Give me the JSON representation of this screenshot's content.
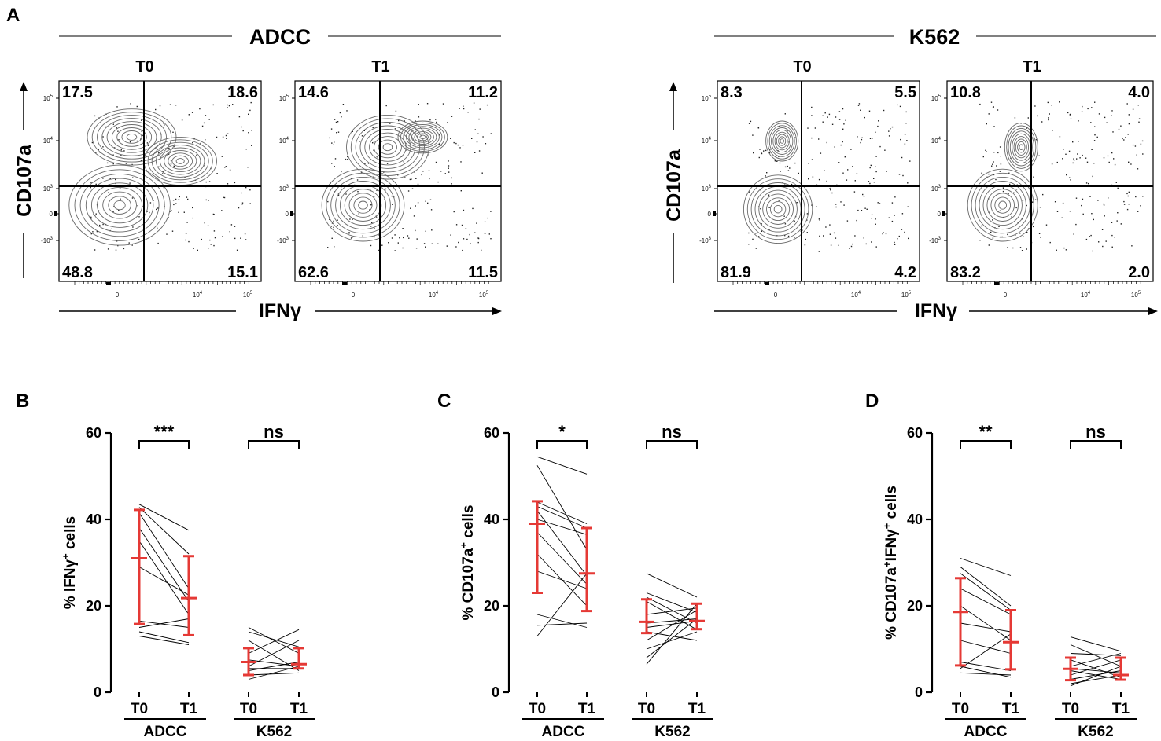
{
  "panels": {
    "a": "A",
    "b": "B",
    "c": "C",
    "d": "D"
  },
  "flow": {
    "conditions": [
      "ADCC",
      "K562"
    ],
    "y_label": "CD107a",
    "x_label": "IFNγ",
    "y_ticks": [
      "10",
      "10",
      "10",
      "0",
      "-10"
    ],
    "y_tick_exp": [
      "5",
      "4",
      "3",
      "",
      "3"
    ],
    "x_ticks": [
      "0",
      "10",
      "10"
    ],
    "x_tick_exp": [
      "",
      "4",
      "5"
    ],
    "plots": [
      {
        "condition": "ADCC",
        "title": "T0",
        "ul": "17.5",
        "ur": "18.6",
        "ll": "48.8",
        "lr": "15.1"
      },
      {
        "condition": "ADCC",
        "title": "T1",
        "ul": "14.6",
        "ur": "11.2",
        "ll": "62.6",
        "lr": "11.5"
      },
      {
        "condition": "K562",
        "title": "T0",
        "ul": "8.3",
        "ur": "5.5",
        "ll": "81.9",
        "lr": "4.2"
      },
      {
        "condition": "K562",
        "title": "T1",
        "ul": "10.8",
        "ur": "4.0",
        "ll": "83.2",
        "lr": "2.0"
      }
    ]
  },
  "chart_data": [
    {
      "type": "line",
      "panel": "B",
      "ylabel": "% IFNγ+ cells",
      "ylabel_main": "% IFNγ",
      "ylabel_sup": "+",
      "ylabel_tail": " cells",
      "ylim": [
        0,
        60
      ],
      "yticks": [
        "0",
        "20",
        "40",
        "60"
      ],
      "time_points": [
        "T0",
        "T1"
      ],
      "groups": [
        {
          "name": "ADCC",
          "significance": "***",
          "pairs": [
            [
              43.5,
              37.5
            ],
            [
              42.8,
              32.0
            ],
            [
              41.5,
              24.0
            ],
            [
              38.0,
              21.0
            ],
            [
              35.0,
              18.0
            ],
            [
              29.0,
              22.5
            ],
            [
              16.5,
              15.0
            ],
            [
              15.0,
              17.0
            ],
            [
              14.0,
              11.5
            ],
            [
              13.0,
              11.0
            ]
          ],
          "t0_mean": 31.0,
          "t0_sd": [
            15.8,
            42.2
          ],
          "t1_mean": 21.8,
          "t1_sd": [
            13.2,
            31.5
          ]
        },
        {
          "name": "K562",
          "significance": "ns",
          "pairs": [
            [
              15.0,
              9.0
            ],
            [
              14.0,
              10.5
            ],
            [
              12.0,
              5.0
            ],
            [
              9.0,
              14.5
            ],
            [
              7.5,
              6.0
            ],
            [
              6.0,
              12.0
            ],
            [
              5.5,
              5.5
            ],
            [
              5.0,
              7.0
            ],
            [
              4.0,
              4.5
            ],
            [
              3.0,
              6.0
            ]
          ],
          "t0_mean": 7.0,
          "t0_sd": [
            4.0,
            10.2
          ],
          "t1_mean": 6.5,
          "t1_sd": [
            5.5,
            10.2
          ]
        }
      ]
    },
    {
      "type": "line",
      "panel": "C",
      "ylabel": "% CD107a+ cells",
      "ylabel_main": "% CD107a",
      "ylabel_sup": "+",
      "ylabel_tail": " cells",
      "ylim": [
        0,
        60
      ],
      "yticks": [
        "0",
        "20",
        "40",
        "60"
      ],
      "time_points": [
        "T0",
        "T1"
      ],
      "groups": [
        {
          "name": "ADCC",
          "significance": "*",
          "pairs": [
            [
              54.5,
              50.5
            ],
            [
              52.5,
              33.0
            ],
            [
              44.0,
              39.0
            ],
            [
              43.0,
              38.0
            ],
            [
              42.0,
              27.0
            ],
            [
              40.0,
              36.5
            ],
            [
              37.0,
              25.0
            ],
            [
              32.0,
              20.0
            ],
            [
              28.0,
              24.0
            ],
            [
              18.0,
              15.0
            ],
            [
              15.5,
              16.0
            ],
            [
              13.0,
              27.5
            ]
          ],
          "t0_mean": 39.0,
          "t0_sd": [
            23.0,
            44.2
          ],
          "t1_mean": 27.5,
          "t1_sd": [
            18.8,
            38.0
          ]
        },
        {
          "name": "K562",
          "significance": "ns",
          "pairs": [
            [
              27.5,
              22.0
            ],
            [
              23.0,
              18.5
            ],
            [
              22.0,
              16.0
            ],
            [
              21.0,
              14.5
            ],
            [
              18.0,
              19.5
            ],
            [
              16.0,
              17.0
            ],
            [
              15.0,
              16.5
            ],
            [
              14.0,
              12.0
            ],
            [
              12.0,
              19.0
            ],
            [
              10.0,
              14.0
            ],
            [
              8.0,
              17.0
            ],
            [
              6.5,
              20.5
            ]
          ],
          "t0_mean": 16.3,
          "t0_sd": [
            13.7,
            21.5
          ],
          "t1_mean": 16.5,
          "t1_sd": [
            14.6,
            20.5
          ]
        }
      ]
    },
    {
      "type": "line",
      "panel": "D",
      "ylabel": "% CD107a+IFNγ+ cells",
      "ylabel_main": "% CD107a",
      "ylabel_sup": "+",
      "ylabel_mid": "IFNγ",
      "ylabel_sup2": "+",
      "ylabel_tail": " cells",
      "ylim": [
        0,
        60
      ],
      "yticks": [
        "0",
        "20",
        "40",
        "60"
      ],
      "time_points": [
        "T0",
        "T1"
      ],
      "groups": [
        {
          "name": "ADCC",
          "significance": "**",
          "pairs": [
            [
              31.0,
              27.0
            ],
            [
              29.0,
              20.0
            ],
            [
              27.5,
              19.0
            ],
            [
              24.0,
              18.0
            ],
            [
              20.0,
              12.0
            ],
            [
              16.0,
              14.0
            ],
            [
              12.0,
              9.0
            ],
            [
              7.0,
              5.0
            ],
            [
              6.0,
              3.5
            ],
            [
              5.5,
              13.5
            ],
            [
              4.5,
              4.0
            ]
          ],
          "t0_mean": 18.6,
          "t0_sd": [
            6.2,
            26.4
          ],
          "t1_mean": 11.6,
          "t1_sd": [
            5.3,
            19.0
          ]
        },
        {
          "name": "K562",
          "significance": "ns",
          "pairs": [
            [
              12.8,
              9.5
            ],
            [
              11.0,
              6.0
            ],
            [
              9.0,
              8.5
            ],
            [
              7.5,
              3.5
            ],
            [
              6.0,
              9.0
            ],
            [
              5.5,
              4.5
            ],
            [
              5.0,
              3.0
            ],
            [
              4.0,
              7.5
            ],
            [
              3.0,
              5.0
            ],
            [
              2.0,
              4.0
            ],
            [
              1.5,
              6.0
            ]
          ],
          "t0_mean": 5.4,
          "t0_sd": [
            2.8,
            8.0
          ],
          "t1_mean": 4.0,
          "t1_sd": [
            2.9,
            8.0
          ]
        }
      ]
    }
  ],
  "colors": {
    "mean_sd": "#e53935",
    "line": "#000000",
    "contour": "#6a6a6a"
  }
}
